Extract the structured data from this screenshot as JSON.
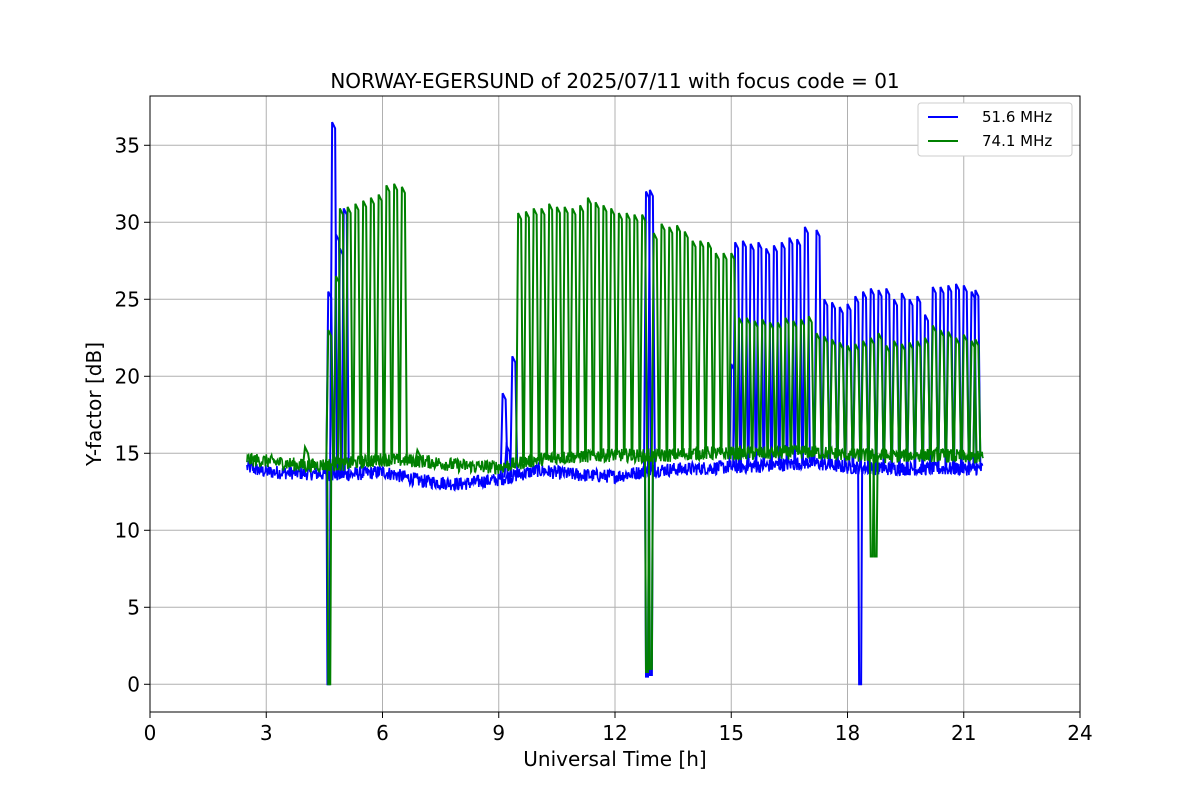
{
  "chart_data": {
    "type": "line",
    "title": "NORWAY-EGERSUND of 2025/07/11 with focus code = 01",
    "xlabel": "Universal Time [h]",
    "ylabel": "Y-factor [dB]",
    "xlim": [
      0,
      24
    ],
    "ylim": [
      -1.8,
      38.2
    ],
    "xticks": [
      0,
      3,
      6,
      9,
      12,
      15,
      18,
      21,
      24
    ],
    "yticks": [
      0,
      5,
      10,
      15,
      20,
      25,
      30,
      35
    ],
    "grid": true,
    "legend_position": "top-right",
    "series": [
      {
        "name": "51.6 MHz",
        "color": "#0000ff",
        "baseline": [
          [
            2.5,
            14.1
          ],
          [
            3,
            13.8
          ],
          [
            4,
            13.7
          ],
          [
            5,
            13.6
          ],
          [
            6,
            13.8
          ],
          [
            7,
            13.2
          ],
          [
            8,
            13.0
          ],
          [
            9,
            13.3
          ],
          [
            10,
            13.9
          ],
          [
            11,
            13.6
          ],
          [
            12,
            13.5
          ],
          [
            13,
            13.9
          ],
          [
            14,
            14.0
          ],
          [
            15,
            14.1
          ],
          [
            16,
            14.2
          ],
          [
            17,
            14.4
          ],
          [
            18,
            14.1
          ],
          [
            19,
            14.0
          ],
          [
            20,
            14.0
          ],
          [
            21,
            14.0
          ],
          [
            21.5,
            14.0
          ]
        ],
        "peaks": [
          [
            4.6,
            25.5
          ],
          [
            4.7,
            36.5
          ],
          [
            4.8,
            29.2
          ],
          [
            4.9,
            28.3
          ],
          [
            5.0,
            30.9
          ],
          [
            9.1,
            18.9
          ],
          [
            9.2,
            15.5
          ],
          [
            9.35,
            21.3
          ],
          [
            12.8,
            32.0
          ],
          [
            12.9,
            32.1
          ],
          [
            15.0,
            20.8
          ],
          [
            15.1,
            28.7
          ],
          [
            15.3,
            28.8
          ],
          [
            15.5,
            28.6
          ],
          [
            15.7,
            28.7
          ],
          [
            15.9,
            28.3
          ],
          [
            16.1,
            28.5
          ],
          [
            16.3,
            28.7
          ],
          [
            16.5,
            29.0
          ],
          [
            16.7,
            28.9
          ],
          [
            16.9,
            29.7
          ],
          [
            17.2,
            29.5
          ],
          [
            17.4,
            25.0
          ],
          [
            17.6,
            24.8
          ],
          [
            17.8,
            24.5
          ],
          [
            18.0,
            24.7
          ],
          [
            18.2,
            25.2
          ],
          [
            18.4,
            25.5
          ],
          [
            18.6,
            25.7
          ],
          [
            18.8,
            25.6
          ],
          [
            19.0,
            25.7
          ],
          [
            19.2,
            25.0
          ],
          [
            19.4,
            25.4
          ],
          [
            19.6,
            25.0
          ],
          [
            19.8,
            25.2
          ],
          [
            20.0,
            24.0
          ],
          [
            20.2,
            25.8
          ],
          [
            20.4,
            25.8
          ],
          [
            20.6,
            25.9
          ],
          [
            20.8,
            26.0
          ],
          [
            21.0,
            25.9
          ],
          [
            21.2,
            25.5
          ],
          [
            21.3,
            25.6
          ]
        ],
        "dips": [
          [
            4.58,
            0.0
          ],
          [
            12.8,
            0.5
          ],
          [
            12.9,
            0.6
          ],
          [
            18.3,
            0.0
          ]
        ]
      },
      {
        "name": "74.1 MHz",
        "color": "#008000",
        "baseline": [
          [
            2.5,
            14.6
          ],
          [
            3,
            14.5
          ],
          [
            4,
            14.2
          ],
          [
            5,
            14.3
          ],
          [
            6,
            14.6
          ],
          [
            7,
            14.5
          ],
          [
            8,
            14.2
          ],
          [
            9,
            14.1
          ],
          [
            10,
            14.6
          ],
          [
            11,
            14.8
          ],
          [
            12,
            14.9
          ],
          [
            13,
            14.8
          ],
          [
            14,
            15.0
          ],
          [
            15,
            15.0
          ],
          [
            16,
            15.0
          ],
          [
            17,
            15.1
          ],
          [
            18,
            14.9
          ],
          [
            19,
            14.8
          ],
          [
            20,
            14.9
          ],
          [
            21,
            14.8
          ],
          [
            21.5,
            14.7
          ]
        ],
        "peaks": [
          [
            4.0,
            15.4
          ],
          [
            4.6,
            23.0
          ],
          [
            4.8,
            26.5
          ],
          [
            4.9,
            30.9
          ],
          [
            5.1,
            31.0
          ],
          [
            5.3,
            31.2
          ],
          [
            5.5,
            31.4
          ],
          [
            5.7,
            31.6
          ],
          [
            5.9,
            31.8
          ],
          [
            6.1,
            32.4
          ],
          [
            6.3,
            32.5
          ],
          [
            6.5,
            32.3
          ],
          [
            6.9,
            15.2
          ],
          [
            9.5,
            30.6
          ],
          [
            9.7,
            30.7
          ],
          [
            9.9,
            30.9
          ],
          [
            10.1,
            30.9
          ],
          [
            10.3,
            31.2
          ],
          [
            10.5,
            31.0
          ],
          [
            10.7,
            31.0
          ],
          [
            10.9,
            30.9
          ],
          [
            11.1,
            31.1
          ],
          [
            11.3,
            31.6
          ],
          [
            11.5,
            31.3
          ],
          [
            11.7,
            31.1
          ],
          [
            11.9,
            30.9
          ],
          [
            12.1,
            30.6
          ],
          [
            12.3,
            30.6
          ],
          [
            12.5,
            30.5
          ],
          [
            12.7,
            30.5
          ],
          [
            13.0,
            29.3
          ],
          [
            13.2,
            29.9
          ],
          [
            13.4,
            29.7
          ],
          [
            13.6,
            29.8
          ],
          [
            13.8,
            29.4
          ],
          [
            14.0,
            28.8
          ],
          [
            14.2,
            28.8
          ],
          [
            14.4,
            28.7
          ],
          [
            14.6,
            28.0
          ],
          [
            14.8,
            28.0
          ],
          [
            15.0,
            28.0
          ],
          [
            15.2,
            23.8
          ],
          [
            15.4,
            23.8
          ],
          [
            15.6,
            23.6
          ],
          [
            15.8,
            23.7
          ],
          [
            16.0,
            23.5
          ],
          [
            16.2,
            23.5
          ],
          [
            16.4,
            23.8
          ],
          [
            16.6,
            23.6
          ],
          [
            16.8,
            23.7
          ],
          [
            17.0,
            23.9
          ],
          [
            17.2,
            22.8
          ],
          [
            17.4,
            22.6
          ],
          [
            17.6,
            22.4
          ],
          [
            17.8,
            22.2
          ],
          [
            18.0,
            22.0
          ],
          [
            18.2,
            22.1
          ],
          [
            18.4,
            22.3
          ],
          [
            18.6,
            22.5
          ],
          [
            18.8,
            22.8
          ],
          [
            19.0,
            22.0
          ],
          [
            19.2,
            22.3
          ],
          [
            19.4,
            22.1
          ],
          [
            19.6,
            22.2
          ],
          [
            19.8,
            22.3
          ],
          [
            20.0,
            22.5
          ],
          [
            20.2,
            23.3
          ],
          [
            20.4,
            23.0
          ],
          [
            20.6,
            22.9
          ],
          [
            20.8,
            22.5
          ],
          [
            21.0,
            22.7
          ],
          [
            21.2,
            22.3
          ],
          [
            21.3,
            22.4
          ]
        ],
        "dips": [
          [
            4.6,
            0.0
          ],
          [
            12.8,
            0.8
          ],
          [
            12.9,
            1.0
          ],
          [
            18.6,
            8.3
          ],
          [
            18.7,
            8.3
          ]
        ]
      }
    ]
  }
}
